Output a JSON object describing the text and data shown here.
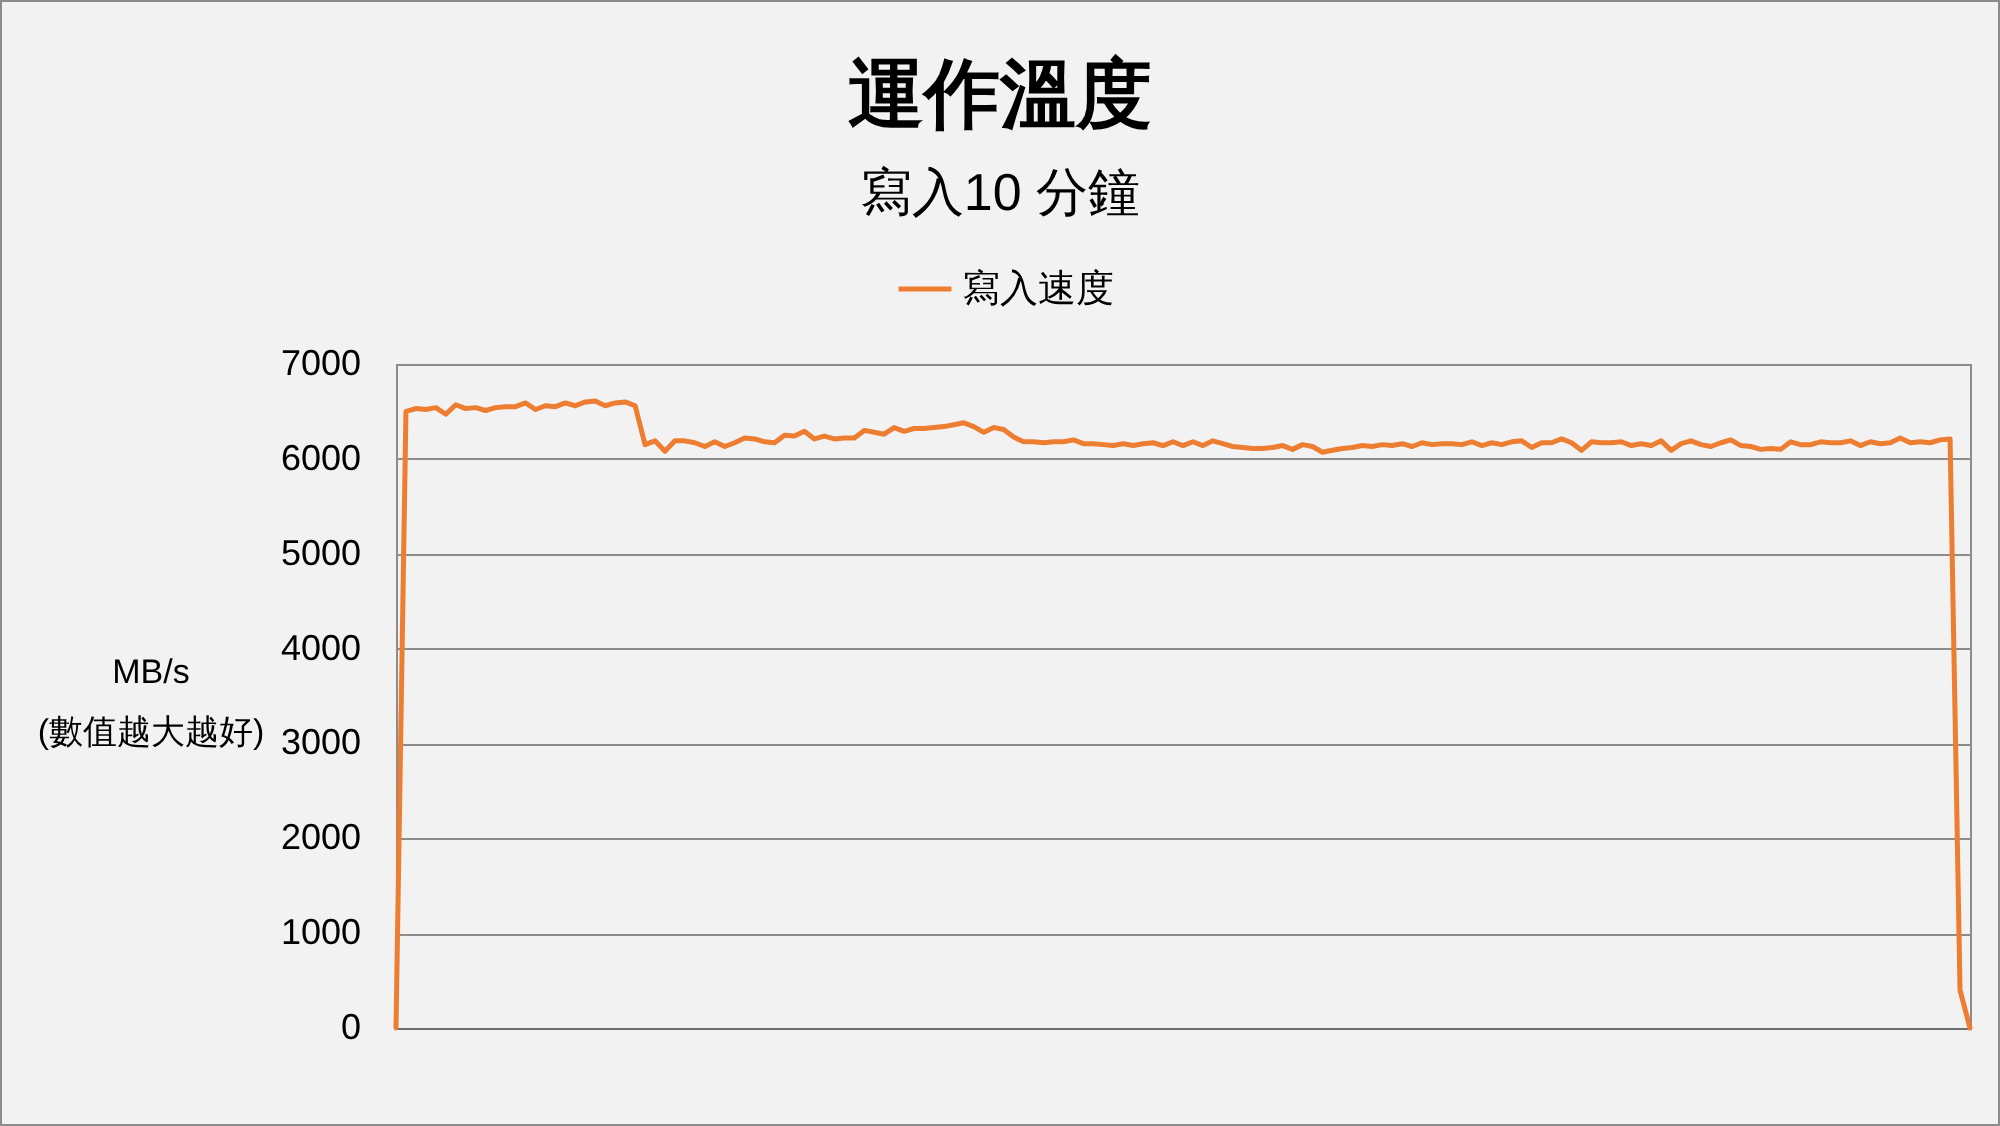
{
  "chart_data": {
    "type": "line",
    "title": "運作溫度",
    "subtitle": "寫入10 分鐘",
    "ylabel": "MB/s\n(數值越大越好)",
    "categories": [
      null,
      null,
      null,
      null,
      null,
      null,
      null,
      null,
      null,
      null,
      null,
      null,
      null,
      null,
      null,
      null,
      null,
      null,
      null,
      null,
      null,
      null,
      null,
      null,
      null,
      null,
      null,
      null,
      null,
      null,
      null,
      null,
      null,
      null,
      null,
      null,
      null,
      null,
      null,
      null,
      null,
      null,
      null,
      null,
      null,
      null,
      null,
      null,
      null,
      null,
      null,
      null,
      null,
      null,
      null,
      null,
      null,
      null,
      null,
      null,
      null,
      null,
      null,
      null,
      null,
      null,
      null,
      null,
      null,
      null,
      null,
      null,
      null,
      null,
      null,
      null,
      null,
      null,
      null,
      null,
      null,
      null,
      null,
      null,
      null,
      null,
      null,
      null,
      null,
      null,
      null,
      null,
      null,
      null,
      null,
      null,
      null,
      null,
      null,
      null,
      null,
      null,
      null,
      null,
      null,
      null,
      null,
      null,
      null,
      null,
      null,
      null,
      null,
      null,
      null,
      null,
      null,
      null,
      null,
      null,
      null,
      null,
      null,
      null,
      null,
      null,
      null,
      null,
      null,
      null,
      null,
      null,
      null,
      null,
      null,
      null,
      null,
      null,
      null,
      null,
      null,
      null,
      null,
      null,
      null,
      null,
      null,
      null,
      null,
      null,
      null,
      null,
      null,
      null,
      null,
      null,
      null,
      null,
      null
    ],
    "series": [
      {
        "name": "寫入速度",
        "color": "#ed7d31",
        "values": [
          0,
          6500,
          6530,
          6520,
          6540,
          6470,
          6570,
          6530,
          6540,
          6510,
          6540,
          6550,
          6550,
          6590,
          6520,
          6560,
          6550,
          6590,
          6560,
          6600,
          6610,
          6560,
          6590,
          6600,
          6560,
          6150,
          6190,
          6080,
          6190,
          6190,
          6170,
          6130,
          6180,
          6130,
          6170,
          6220,
          6210,
          6180,
          6170,
          6250,
          6240,
          6290,
          6210,
          6240,
          6210,
          6220,
          6220,
          6300,
          6280,
          6260,
          6330,
          6290,
          6320,
          6320,
          6330,
          6340,
          6360,
          6380,
          6340,
          6280,
          6330,
          6310,
          6230,
          6180,
          6180,
          6170,
          6180,
          6180,
          6200,
          6160,
          6160,
          6150,
          6140,
          6160,
          6140,
          6160,
          6170,
          6140,
          6180,
          6140,
          6180,
          6140,
          6190,
          6160,
          6130,
          6120,
          6110,
          6110,
          6120,
          6140,
          6100,
          6150,
          6130,
          6070,
          6090,
          6110,
          6120,
          6140,
          6130,
          6150,
          6140,
          6160,
          6130,
          6170,
          6150,
          6160,
          6160,
          6150,
          6180,
          6140,
          6170,
          6150,
          6180,
          6190,
          6120,
          6170,
          6170,
          6210,
          6170,
          6090,
          6180,
          6170,
          6170,
          6180,
          6140,
          6160,
          6140,
          6190,
          6090,
          6160,
          6190,
          6150,
          6130,
          6170,
          6200,
          6140,
          6130,
          6100,
          6110,
          6100,
          6180,
          6150,
          6150,
          6180,
          6170,
          6170,
          6190,
          6140,
          6180,
          6160,
          6170,
          6220,
          6170,
          6180,
          6170,
          6200,
          6210,
          400,
          0
        ]
      }
    ],
    "ylim": [
      0,
      7000
    ],
    "yticks": [
      0,
      1000,
      2000,
      3000,
      4000,
      5000,
      6000,
      7000
    ],
    "grid": "y",
    "legend": "top"
  }
}
